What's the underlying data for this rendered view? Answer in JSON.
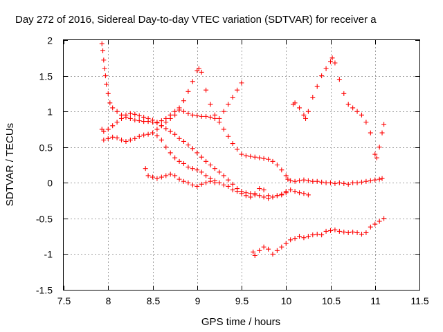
{
  "chart_data": {
    "type": "scatter",
    "title": "Day 272 of 2016, Sidereal Day-to-day VTEC variation (SDTVAR) for receiver a",
    "xlabel": "GPS time / hours",
    "ylabel": "SDTVAR / TECUs",
    "xlim": [
      7.5,
      11.5
    ],
    "ylim": [
      -1.5,
      2
    ],
    "x_ticks": [
      "7.5",
      "8",
      "8.5",
      "9",
      "9.5",
      "10",
      "10.5",
      "11",
      "11.5"
    ],
    "y_ticks": [
      "-1.5",
      "-1",
      "-0.5",
      "0",
      "0.5",
      "1",
      "1.5",
      "2"
    ],
    "grid": true,
    "marker": "+",
    "color": "#ff0000",
    "series": [
      {
        "x": [
          7.93,
          7.94,
          7.95,
          7.96,
          7.97,
          7.98,
          8.0,
          8.02,
          8.05,
          8.1,
          8.15,
          8.2,
          8.25,
          8.3,
          8.35,
          8.4,
          8.45,
          8.5,
          8.55,
          8.6,
          8.65,
          8.7,
          8.75,
          8.8,
          8.85,
          8.9,
          8.95,
          9.0,
          9.05,
          9.1,
          9.15,
          9.2,
          9.25,
          9.3,
          9.35,
          9.4,
          9.45,
          9.5,
          9.55,
          9.6,
          9.65,
          9.7,
          9.75,
          9.8,
          9.85,
          9.9,
          9.95,
          10.0,
          10.02,
          10.05,
          10.1,
          10.15,
          10.2,
          10.25,
          10.3,
          10.35,
          10.4,
          10.45,
          10.5,
          10.55,
          10.6,
          10.65,
          10.7,
          10.75,
          10.8,
          10.85,
          10.9,
          10.95,
          11.0,
          11.05,
          11.08
        ],
        "y": [
          1.95,
          1.85,
          1.72,
          1.6,
          1.5,
          1.38,
          1.25,
          1.12,
          1.05,
          1.0,
          0.95,
          0.92,
          0.9,
          0.88,
          0.87,
          0.86,
          0.86,
          0.85,
          0.85,
          0.87,
          0.9,
          0.95,
          1.0,
          1.02,
          1.0,
          0.97,
          0.95,
          0.94,
          0.93,
          0.93,
          0.92,
          0.9,
          0.85,
          0.75,
          0.65,
          0.55,
          0.47,
          0.4,
          0.38,
          0.37,
          0.36,
          0.35,
          0.34,
          0.33,
          0.3,
          0.25,
          0.18,
          0.1,
          0.05,
          0.03,
          0.02,
          0.03,
          0.04,
          0.03,
          0.02,
          0.02,
          0.01,
          0.0,
          0.0,
          -0.01,
          0.0,
          -0.01,
          -0.02,
          0.0,
          0.0,
          0.01,
          0.02,
          0.03,
          0.04,
          0.05,
          0.06
        ]
      },
      {
        "x": [
          7.93,
          7.95,
          8.0,
          8.05,
          8.1,
          8.15,
          8.2,
          8.25,
          8.3,
          8.35,
          8.4,
          8.45,
          8.5,
          8.55,
          8.6,
          8.65,
          8.7,
          8.75,
          8.8,
          8.85,
          8.9,
          8.95,
          9.0,
          9.05,
          9.1,
          9.15,
          9.2,
          9.25,
          9.3,
          9.35,
          9.4,
          9.45,
          9.5,
          9.55,
          9.6,
          9.65,
          9.7,
          9.75,
          9.8,
          9.85,
          9.9,
          9.95,
          10.0,
          10.05,
          10.1,
          10.15,
          10.2,
          10.25
        ],
        "y": [
          0.75,
          0.72,
          0.75,
          0.8,
          0.85,
          0.9,
          0.95,
          0.97,
          0.96,
          0.94,
          0.92,
          0.9,
          0.88,
          0.84,
          0.8,
          0.76,
          0.72,
          0.68,
          0.62,
          0.58,
          0.53,
          0.48,
          0.42,
          0.36,
          0.3,
          0.25,
          0.2,
          0.15,
          0.1,
          0.04,
          -0.02,
          -0.08,
          -0.12,
          -0.14,
          -0.15,
          -0.17,
          -0.18,
          -0.2,
          -0.22,
          -0.2,
          -0.18,
          -0.17,
          -0.12,
          -0.1,
          -0.12,
          -0.14,
          -0.15,
          -0.17
        ]
      },
      {
        "x": [
          7.95,
          8.0,
          8.05,
          8.1,
          8.15,
          8.2,
          8.25,
          8.3,
          8.35,
          8.4,
          8.45,
          8.5,
          8.55,
          8.6,
          8.65,
          8.7,
          8.75,
          8.8,
          8.85,
          8.9,
          8.95,
          9.0,
          9.05,
          9.1,
          9.15,
          9.2,
          9.25,
          9.3,
          9.35,
          9.4,
          9.45,
          9.5,
          9.55,
          9.6,
          9.65,
          9.7,
          9.75,
          9.8,
          9.85,
          9.9,
          9.95,
          10.0
        ],
        "y": [
          0.6,
          0.62,
          0.64,
          0.63,
          0.6,
          0.58,
          0.6,
          0.62,
          0.65,
          0.67,
          0.68,
          0.7,
          0.66,
          0.6,
          0.5,
          0.42,
          0.35,
          0.3,
          0.27,
          0.22,
          0.2,
          0.18,
          0.15,
          0.1,
          0.06,
          0.03,
          0.0,
          -0.03,
          -0.05,
          -0.1,
          -0.12,
          -0.15,
          -0.18,
          -0.2,
          -0.15,
          -0.08,
          -0.1,
          -0.18,
          -0.2,
          -0.18,
          -0.16,
          -0.14
        ]
      },
      {
        "x": [
          8.42,
          8.45,
          8.5,
          8.55,
          8.6,
          8.65,
          8.7,
          8.75,
          8.8,
          8.85,
          8.9,
          8.95,
          9.0,
          9.05,
          9.1,
          9.15,
          9.2
        ],
        "y": [
          0.2,
          0.1,
          0.08,
          0.06,
          0.08,
          0.1,
          0.12,
          0.1,
          0.05,
          0.02,
          0.0,
          -0.03,
          -0.05,
          -0.02,
          0.0,
          0.02,
          0.0
        ]
      },
      {
        "x": [
          8.55,
          8.6,
          8.65,
          8.7,
          8.75,
          8.8,
          8.85,
          8.9,
          8.95,
          9.0,
          9.02,
          9.05,
          9.1,
          9.15,
          9.2,
          9.25,
          9.3,
          9.35,
          9.4,
          9.45,
          9.5
        ],
        "y": [
          0.75,
          0.8,
          0.85,
          0.9,
          0.95,
          1.05,
          1.15,
          1.28,
          1.42,
          1.57,
          1.6,
          1.55,
          1.3,
          1.1,
          0.95,
          0.9,
          1.0,
          1.1,
          1.2,
          1.3,
          1.4
        ]
      },
      {
        "x": [
          10.08,
          10.1,
          10.15,
          10.2,
          10.22,
          10.25,
          10.3,
          10.35,
          10.4,
          10.45,
          10.5,
          10.52,
          10.55,
          10.6,
          10.65,
          10.7,
          10.75,
          10.8,
          10.85,
          10.9,
          10.95,
          11.0,
          11.02,
          11.05,
          11.08,
          11.1
        ],
        "y": [
          1.1,
          1.12,
          1.05,
          0.95,
          0.9,
          1.0,
          1.2,
          1.35,
          1.5,
          1.6,
          1.7,
          1.75,
          1.68,
          1.45,
          1.25,
          1.1,
          1.05,
          1.0,
          0.95,
          0.85,
          0.7,
          0.4,
          0.35,
          0.5,
          0.7,
          0.82
        ]
      },
      {
        "x": [
          9.63,
          9.65,
          9.7,
          9.75,
          9.8,
          9.85,
          9.9,
          9.95,
          10.0,
          10.05,
          10.1,
          10.15,
          10.2,
          10.25,
          10.3,
          10.35,
          10.4,
          10.45,
          10.5,
          10.55,
          10.6,
          10.65,
          10.7,
          10.75,
          10.8,
          10.85,
          10.9,
          10.95,
          11.0,
          11.05,
          11.1
        ],
        "y": [
          -0.97,
          -1.02,
          -0.95,
          -0.9,
          -0.93,
          -1.0,
          -0.95,
          -0.9,
          -0.85,
          -0.8,
          -0.78,
          -0.75,
          -0.77,
          -0.75,
          -0.73,
          -0.72,
          -0.73,
          -0.68,
          -0.67,
          -0.66,
          -0.68,
          -0.69,
          -0.7,
          -0.69,
          -0.7,
          -0.72,
          -0.7,
          -0.62,
          -0.58,
          -0.54,
          -0.5
        ]
      }
    ]
  }
}
